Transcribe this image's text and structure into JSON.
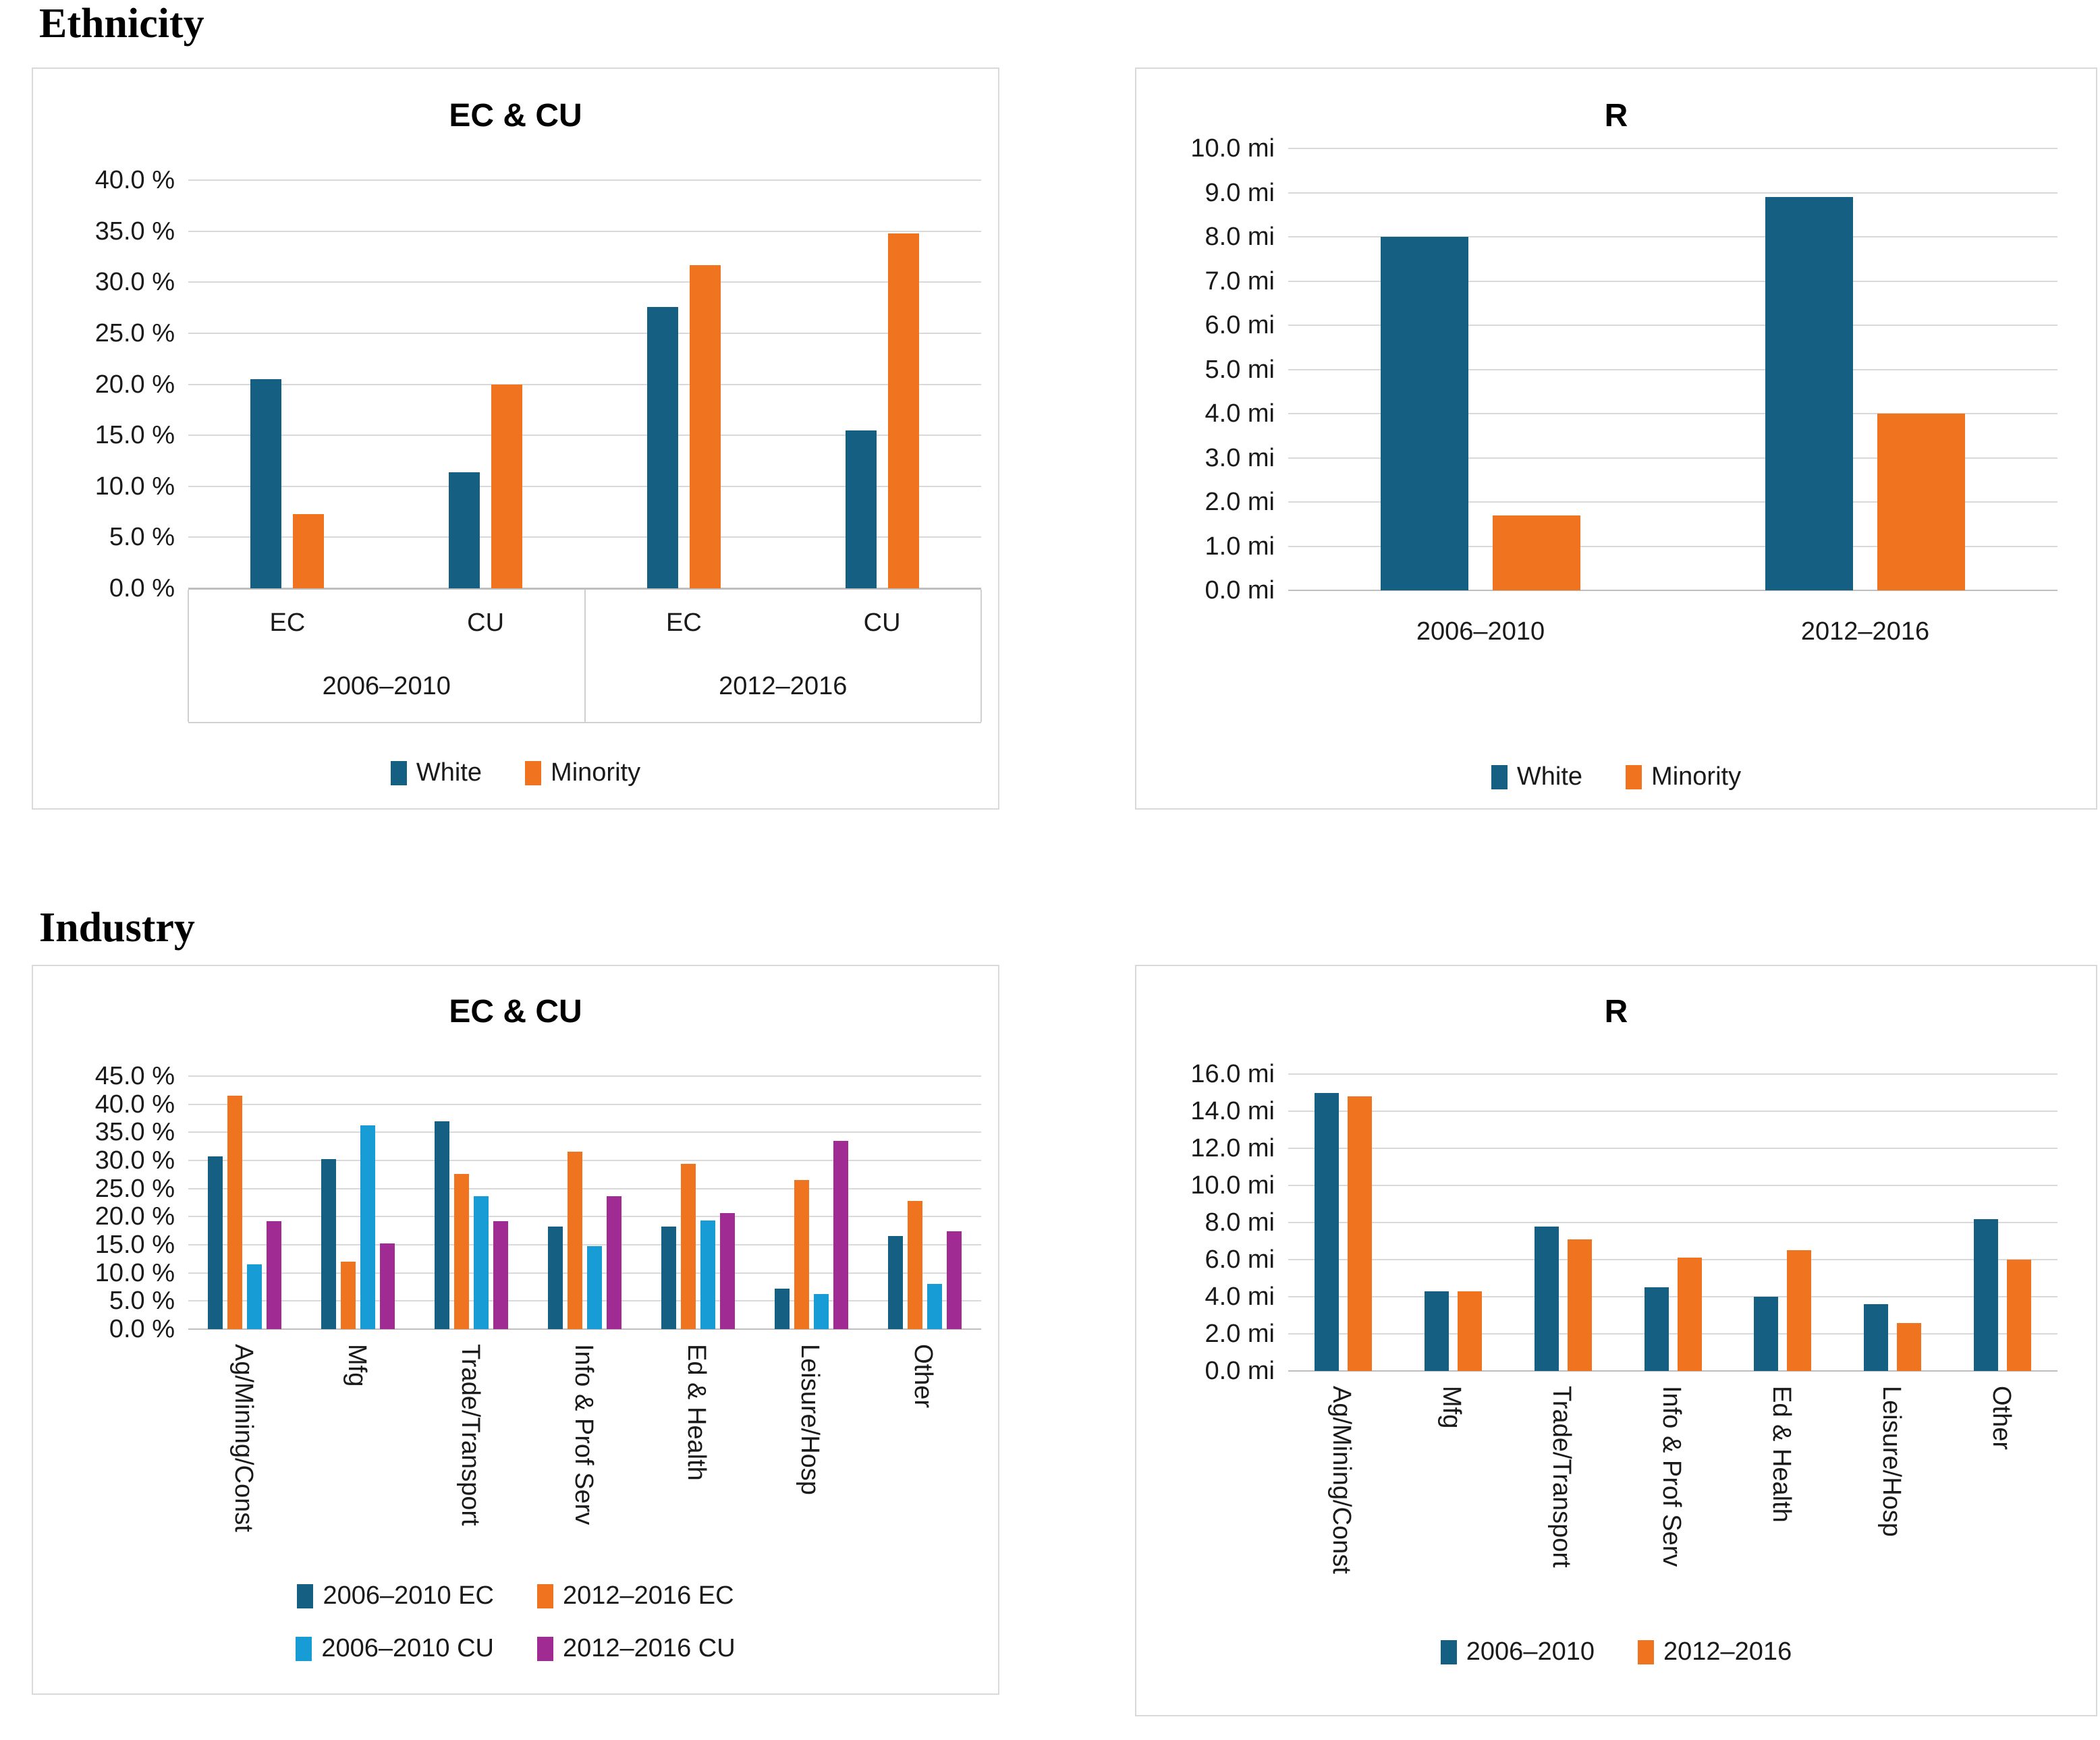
{
  "headings": [
    "Ethnicity",
    "Industry"
  ],
  "colors": {
    "dark_blue": "#156082",
    "orange": "#F0731F",
    "light_blue": "#189CD5",
    "magenta": "#A02B93",
    "gridline": "#D9D9D9",
    "axis_line": "#BFBFBF"
  },
  "chart_data": [
    {
      "id": "ethnicity-ec-cu",
      "type": "bar",
      "section": "Ethnicity",
      "title": "EC & CU",
      "unit": "%",
      "ylim": [
        0,
        40
      ],
      "ystep": 5,
      "grid": true,
      "legend_position": "bottom",
      "categories": [
        "EC",
        "CU",
        "EC",
        "CU"
      ],
      "category_groups": [
        "2006–2010",
        "2012–2016"
      ],
      "series": [
        {
          "name": "White",
          "color": "#156082",
          "values": [
            20.5,
            11.4,
            27.6,
            15.5
          ]
        },
        {
          "name": "Minority",
          "color": "#F0731F",
          "values": [
            7.3,
            20.0,
            31.7,
            34.8
          ]
        }
      ]
    },
    {
      "id": "ethnicity-r",
      "type": "bar",
      "section": "Ethnicity",
      "title": "R",
      "unit": "mi",
      "ylim": [
        0,
        10
      ],
      "ystep": 1,
      "grid": true,
      "legend_position": "bottom",
      "categories": [
        "2006–2010",
        "2012–2016"
      ],
      "series": [
        {
          "name": "White",
          "color": "#156082",
          "values": [
            8.0,
            8.9
          ]
        },
        {
          "name": "Minority",
          "color": "#F0731F",
          "values": [
            1.7,
            4.0
          ]
        }
      ]
    },
    {
      "id": "industry-ec-cu",
      "type": "bar",
      "section": "Industry",
      "title": "EC & CU",
      "unit": "%",
      "ylim": [
        0,
        45
      ],
      "ystep": 5,
      "grid": true,
      "legend_position": "bottom",
      "categories": [
        "Ag/Mining/Const",
        "Mfg",
        "Trade/Transport",
        "Info & Prof Serv",
        "Ed & Health",
        "Leisure/Hosp",
        "Other"
      ],
      "series": [
        {
          "name": "2006–2010 EC",
          "color": "#156082",
          "values": [
            30.7,
            30.2,
            37.0,
            18.3,
            18.3,
            7.2,
            16.6
          ]
        },
        {
          "name": "2012–2016 EC",
          "color": "#F0731F",
          "values": [
            41.5,
            12.0,
            27.6,
            31.6,
            29.4,
            26.5,
            22.8
          ]
        },
        {
          "name": "2006–2010 CU",
          "color": "#189CD5",
          "values": [
            11.5,
            36.2,
            23.6,
            14.8,
            19.3,
            6.2,
            8.0
          ]
        },
        {
          "name": "2012–2016 CU",
          "color": "#A02B93",
          "values": [
            19.2,
            15.2,
            19.2,
            23.7,
            20.6,
            33.5,
            17.4
          ]
        }
      ]
    },
    {
      "id": "industry-r",
      "type": "bar",
      "section": "Industry",
      "title": "R",
      "unit": "mi",
      "ylim": [
        0,
        16
      ],
      "ystep": 2,
      "grid": true,
      "legend_position": "bottom",
      "categories": [
        "Ag/Mining/Const",
        "Mfg",
        "Trade/Transport",
        "Info & Prof Serv",
        "Ed & Health",
        "Leisure/Hosp",
        "Other"
      ],
      "series": [
        {
          "name": "2006–2010",
          "color": "#156082",
          "values": [
            15.0,
            4.3,
            7.8,
            4.5,
            4.0,
            3.6,
            8.2
          ]
        },
        {
          "name": "2012–2016",
          "color": "#F0731F",
          "values": [
            14.8,
            4.3,
            7.1,
            6.1,
            6.5,
            2.6,
            6.0
          ]
        }
      ]
    }
  ]
}
